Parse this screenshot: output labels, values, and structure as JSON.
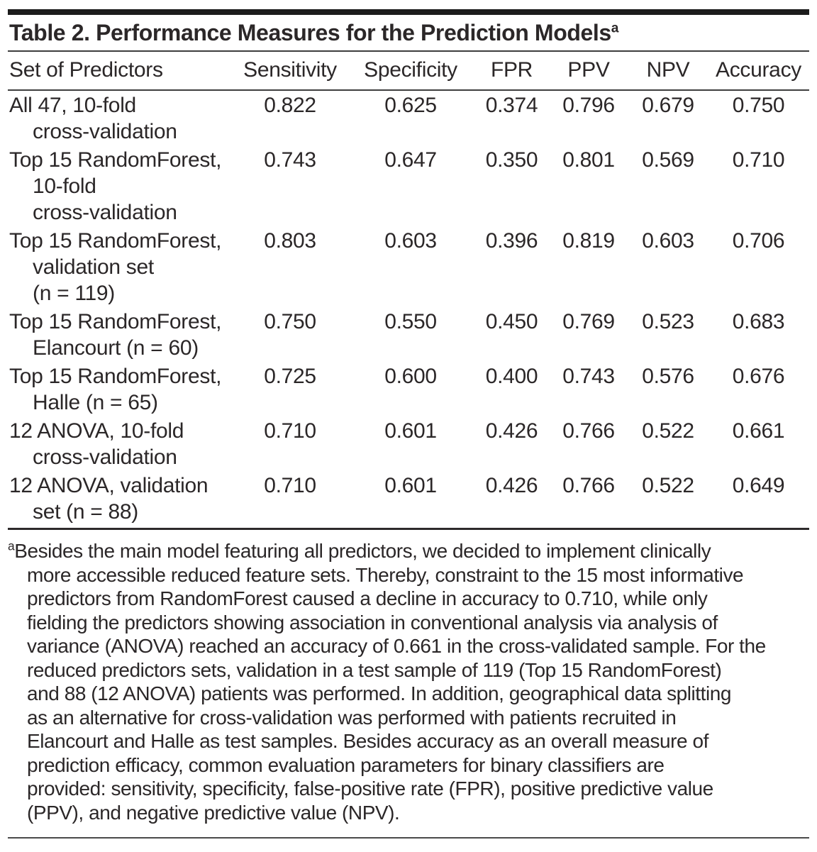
{
  "page": {
    "background_color": "#ffffff",
    "text_color": "#2b2728",
    "top_bar_color": "#1c1c1c",
    "rule_color": "#3e3e3e"
  },
  "table": {
    "title": "Table 2. Performance Measures for the Prediction Models",
    "title_marker": "a",
    "columns": [
      "Set of Predictors",
      "Sensitivity",
      "Specificity",
      "FPR",
      "PPV",
      "NPV",
      "Accuracy"
    ],
    "rows": [
      {
        "predictor_lines": [
          "All 47, 10-fold",
          "cross-validation"
        ],
        "values": [
          "0.822",
          "0.625",
          "0.374",
          "0.796",
          "0.679",
          "0.750"
        ]
      },
      {
        "predictor_lines": [
          "Top 15 RandomForest,",
          "10-fold",
          "cross-validation"
        ],
        "values": [
          "0.743",
          "0.647",
          "0.350",
          "0.801",
          "0.569",
          "0.710"
        ]
      },
      {
        "predictor_lines": [
          "Top 15 RandomForest,",
          "validation set",
          "(n = 119)"
        ],
        "values": [
          "0.803",
          "0.603",
          "0.396",
          "0.819",
          "0.603",
          "0.706"
        ]
      },
      {
        "predictor_lines": [
          "Top 15 RandomForest,",
          "Elancourt (n = 60)"
        ],
        "values": [
          "0.750",
          "0.550",
          "0.450",
          "0.769",
          "0.523",
          "0.683"
        ]
      },
      {
        "predictor_lines": [
          "Top 15 RandomForest,",
          "Halle (n = 65)"
        ],
        "values": [
          "0.725",
          "0.600",
          "0.400",
          "0.743",
          "0.576",
          "0.676"
        ]
      },
      {
        "predictor_lines": [
          "12 ANOVA, 10-fold",
          "cross-validation"
        ],
        "values": [
          "0.710",
          "0.601",
          "0.426",
          "0.766",
          "0.522",
          "0.661"
        ]
      },
      {
        "predictor_lines": [
          "12 ANOVA, validation",
          "set (n = 88)"
        ],
        "values": [
          "0.710",
          "0.601",
          "0.426",
          "0.766",
          "0.522",
          "0.649"
        ]
      }
    ]
  },
  "footnote": {
    "marker": "a",
    "lines": [
      "Besides the main model featuring all predictors, we decided to implement clinically",
      "more accessible reduced feature sets. Thereby, constraint to the 15 most informative",
      "predictors from RandomForest caused a decline in accuracy to 0.710, while only",
      "fielding the predictors showing association in conventional analysis via analysis of",
      "variance (ANOVA) reached an accuracy of 0.661 in the cross-validated sample. For the",
      "reduced predictors sets, validation in a test sample of 119 (Top 15 RandomForest)",
      "and 88 (12 ANOVA) patients was performed. In addition, geographical data splitting",
      "as an alternative for cross-validation was performed with patients recruited in",
      "Elancourt and Halle as test samples. Besides accuracy as an overall measure of",
      "prediction efficacy, common evaluation parameters for binary classifiers are",
      "provided: sensitivity, specificity, false-positive rate (FPR), positive predictive value",
      "(PPV), and negative predictive value (NPV)."
    ]
  }
}
